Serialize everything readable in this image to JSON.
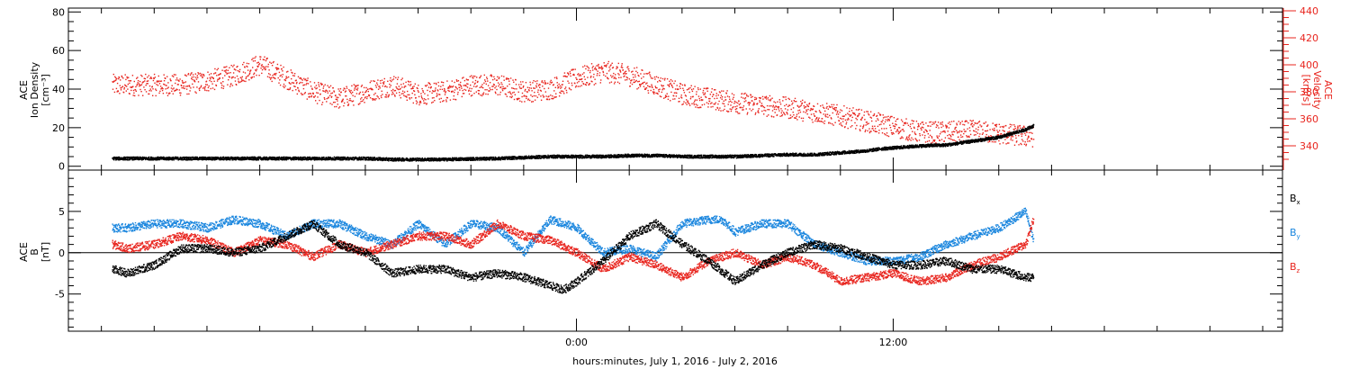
{
  "xaxis": {
    "label": "hours:minutes, July  1, 2016 - July  2, 2016",
    "range_hours": [
      -19.25,
      26.75
    ],
    "major_ticks": [
      {
        "hour": 0,
        "label": "0:00"
      },
      {
        "hour": 12,
        "label": "12:00"
      }
    ],
    "minor_step_hours": 2
  },
  "colors": {
    "black": "#000000",
    "red": "#e8251e",
    "blue": "#1a86de"
  },
  "chart_data": [
    {
      "type": "scatter",
      "panel": "top",
      "ylabel_left": {
        "line1": "ACE",
        "line2": "Ion Density",
        "line3": "[cm⁻³]"
      },
      "ylabel_right": {
        "line1": "ACE",
        "line2": "Velocity",
        "line3": "[km/s]"
      },
      "yleft_range": [
        -2,
        82
      ],
      "yleft_ticks": [
        0,
        20,
        40,
        60,
        80
      ],
      "yright_range": [
        322,
        442
      ],
      "yright_ticks": [
        340,
        360,
        380,
        400,
        420,
        440
      ],
      "series": [
        {
          "color": "black",
          "axis": "left",
          "x": [
            -17.6,
            -17,
            -16,
            -15,
            -14,
            -13,
            -12,
            -11,
            -10,
            -9,
            -8,
            -7,
            -6,
            -5,
            -4,
            -3,
            -2,
            -1,
            0,
            1,
            2,
            3,
            4,
            5,
            6,
            7,
            8,
            9,
            9.5,
            10,
            10.5,
            11,
            11.5,
            12,
            12.5,
            13,
            13.5,
            14,
            14.5,
            15,
            15.5,
            16,
            16.5,
            17,
            17.3
          ],
          "y": [
            4,
            4,
            4,
            4,
            4,
            4,
            4,
            4,
            4,
            4,
            4,
            3.5,
            3.5,
            3.5,
            3.8,
            4,
            4.5,
            5,
            5,
            5,
            5.5,
            5.5,
            5,
            5,
            5,
            5.5,
            6,
            6,
            6.5,
            7,
            7.5,
            8,
            9,
            9.5,
            10,
            10.5,
            10.8,
            11,
            12,
            13,
            14,
            15,
            17,
            19,
            21
          ]
        },
        {
          "color": "red",
          "axis": "right",
          "x": [
            -17.6,
            -17,
            -16,
            -15,
            -14,
            -13,
            -12,
            -11,
            -10,
            -9,
            -8,
            -7,
            -6,
            -5,
            -4,
            -3,
            -2,
            -1,
            0,
            1,
            2,
            3,
            4,
            5,
            6,
            7,
            8,
            9,
            10,
            11,
            12,
            13,
            14,
            15,
            16,
            17,
            17.3
          ],
          "y": [
            385,
            385,
            385,
            385,
            388,
            392,
            400,
            390,
            380,
            375,
            380,
            385,
            378,
            380,
            385,
            385,
            380,
            382,
            390,
            395,
            392,
            385,
            378,
            375,
            372,
            370,
            368,
            365,
            362,
            358,
            354,
            350,
            350,
            351,
            349,
            347,
            347
          ]
        }
      ]
    },
    {
      "type": "scatter",
      "panel": "bottom",
      "ylabel_left": {
        "line1": "ACE",
        "line2": "B",
        "line3": "[nT]"
      },
      "y_range": [
        -9.5,
        10
      ],
      "y_ticks": [
        -5,
        0,
        5
      ],
      "legend": [
        {
          "label": "B",
          "sub": "x",
          "color": "black"
        },
        {
          "label": "B",
          "sub": "y",
          "color": "blue"
        },
        {
          "label": "B",
          "sub": "z",
          "color": "red"
        }
      ],
      "series": [
        {
          "name": "Bx",
          "color": "black",
          "x": [
            -17.6,
            -17,
            -16,
            -15,
            -14,
            -13,
            -12,
            -11,
            -10,
            -9,
            -8,
            -7,
            -6,
            -5,
            -4,
            -3,
            -2,
            -1,
            -0.5,
            0,
            1,
            2,
            3,
            4,
            5,
            6,
            7,
            8,
            9,
            10,
            11,
            12,
            13,
            14,
            15,
            16,
            17,
            17.3
          ],
          "y": [
            -2,
            -2.5,
            -1.5,
            0.5,
            0.5,
            0,
            0.5,
            2,
            3.5,
            1,
            0,
            -2.5,
            -2,
            -2,
            -3,
            -2.5,
            -3,
            -4,
            -4.5,
            -3.5,
            -1,
            2,
            3.5,
            1,
            -1,
            -3.5,
            -1.5,
            0,
            1,
            0.5,
            -0.5,
            -1.5,
            -1.5,
            -1,
            -2,
            -2,
            -3,
            -3
          ]
        },
        {
          "name": "By",
          "color": "blue",
          "x": [
            -17.6,
            -17,
            -16,
            -15,
            -14,
            -13,
            -12,
            -11,
            -10,
            -9,
            -8,
            -7,
            -6,
            -5,
            -4,
            -3,
            -2,
            -1,
            0,
            1,
            2,
            3,
            4,
            5,
            5.5,
            6,
            7,
            8,
            9,
            10,
            11,
            12,
            13,
            14,
            15,
            16,
            17,
            17.3
          ],
          "y": [
            3,
            3,
            3.5,
            3.5,
            3,
            4,
            3.5,
            2,
            3.5,
            3.5,
            2,
            1,
            3.5,
            1,
            3.5,
            3,
            0,
            4,
            3,
            0,
            0.5,
            -0.5,
            3.5,
            4,
            4,
            2.5,
            3.5,
            3.5,
            1,
            0,
            -1,
            -1,
            -0.5,
            1,
            2,
            3,
            5,
            1.5
          ]
        },
        {
          "name": "Bz",
          "color": "red",
          "x": [
            -17.6,
            -17,
            -16,
            -15,
            -14,
            -13,
            -12,
            -11,
            -10,
            -9,
            -8,
            -7,
            -6,
            -5,
            -4,
            -3,
            -2,
            -1,
            0,
            1,
            2,
            3,
            4,
            5,
            6,
            7,
            8,
            9,
            10,
            11,
            12,
            13,
            14,
            15,
            16,
            17,
            17.3
          ],
          "y": [
            1,
            0.5,
            1,
            2,
            1.5,
            0,
            1.5,
            1,
            -0.5,
            1,
            0,
            1,
            2,
            2,
            1,
            3.5,
            2,
            1.5,
            0,
            -2,
            -0.5,
            -1.5,
            -3,
            -1,
            0,
            -1.5,
            -0.5,
            -1.5,
            -3.5,
            -3,
            -2.5,
            -3.5,
            -3,
            -1.5,
            -0.5,
            1,
            4
          ]
        }
      ]
    }
  ]
}
